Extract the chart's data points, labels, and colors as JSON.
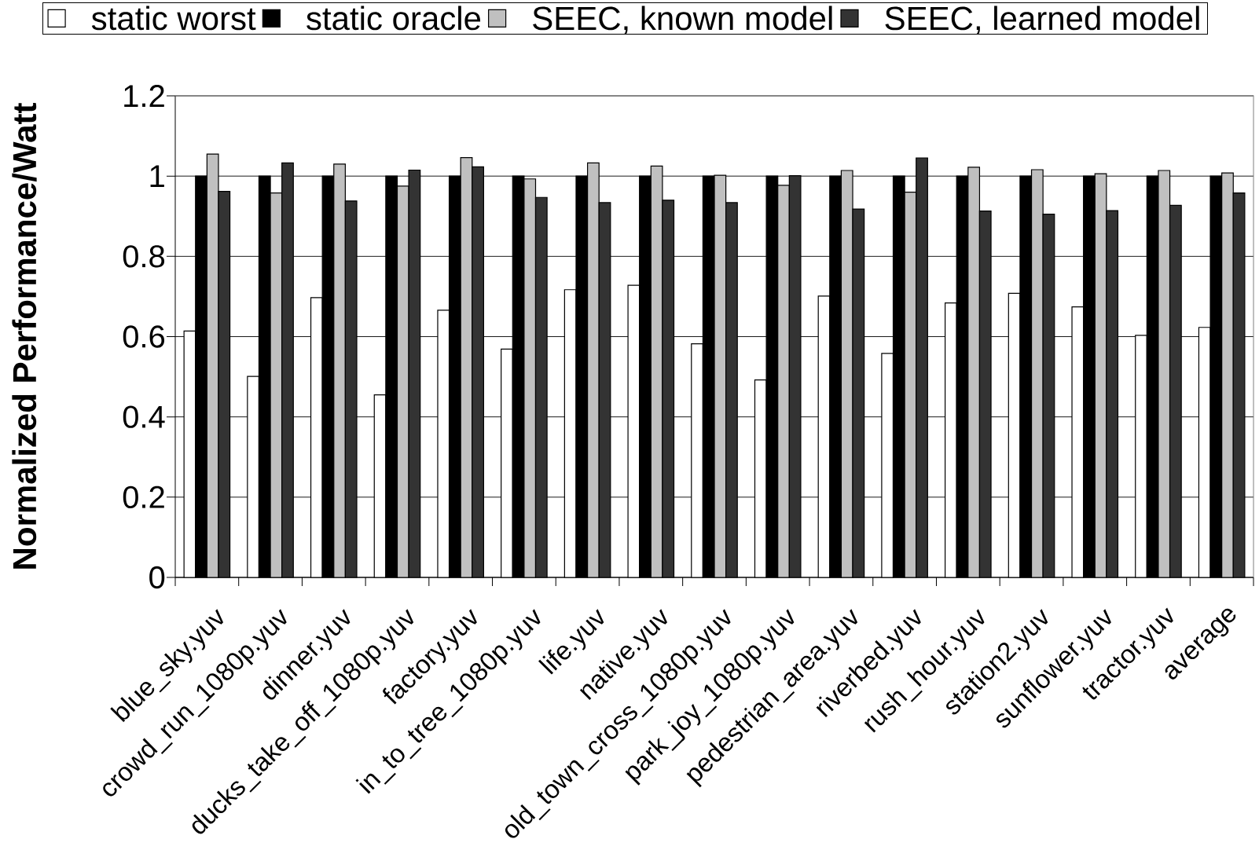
{
  "chart_data": {
    "type": "bar",
    "ylabel": "Normalized Performance/Watt",
    "categories": [
      "blue_sky.yuv",
      "crowd_run_1080p.yuv",
      "dinner.yuv",
      "ducks_take_off_1080p.yuv",
      "factory.yuv",
      "in_to_tree_1080p.yuv",
      "life.yuv",
      "native.yuv",
      "old_town_cross_1080p.yuv",
      "park_joy_1080p.yuv",
      "pedestrian_area.yuv",
      "riverbed.yuv",
      "rush_hour.yuv",
      "station2.yuv",
      "sunflower.yuv",
      "tractor.yuv",
      "average"
    ],
    "series": [
      {
        "name": "static worst",
        "color": "#ffffff",
        "values": [
          0.614,
          0.501,
          0.697,
          0.455,
          0.666,
          0.569,
          0.717,
          0.728,
          0.582,
          0.492,
          0.701,
          0.558,
          0.684,
          0.708,
          0.674,
          0.603,
          0.623
        ]
      },
      {
        "name": "static oracle",
        "color": "#000000",
        "values": [
          1,
          1,
          1,
          1,
          1,
          1,
          1,
          1,
          1,
          1,
          1,
          1,
          1,
          1,
          1,
          1,
          1
        ]
      },
      {
        "name": "SEEC, known model",
        "color": "#c0c0c0",
        "values": [
          1.055,
          0.958,
          1.03,
          0.975,
          1.046,
          0.993,
          1.033,
          1.025,
          1.002,
          0.977,
          1.014,
          0.96,
          1.022,
          1.016,
          1.006,
          1.014,
          1.008
        ]
      },
      {
        "name": "SEEC, learned model",
        "color": "#333333",
        "values": [
          0.962,
          1.033,
          0.938,
          1.015,
          1.023,
          0.947,
          0.934,
          0.94,
          0.934,
          1.001,
          0.918,
          1.045,
          0.913,
          0.905,
          0.914,
          0.927,
          0.958
        ]
      }
    ],
    "ylim": [
      0,
      1.2
    ],
    "yticks": [
      0,
      0.2,
      0.4,
      0.6,
      0.8,
      1,
      1.2
    ],
    "grid": "y",
    "legend": "top"
  }
}
